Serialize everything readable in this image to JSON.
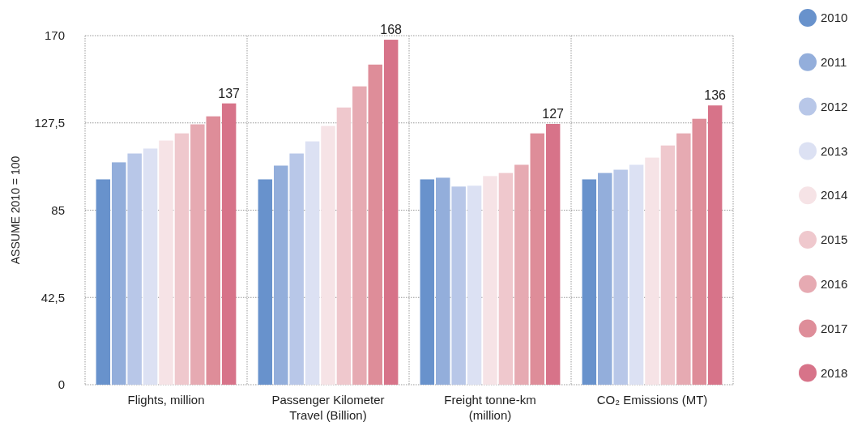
{
  "chart_data": {
    "type": "bar",
    "ylabel": "ASSUME 2010 = 100",
    "categories": [
      "Flights, million",
      "Passenger Kilometer Travel (Billion)",
      "Freight tonne-km (million)",
      "CO₂ Emissions (MT)"
    ],
    "series": [
      {
        "name": "2010",
        "color": "#6892cc",
        "values": [
          100,
          100,
          100,
          100
        ]
      },
      {
        "name": "2011",
        "color": "#93aedb",
        "values": [
          108.3,
          106.7,
          100.8,
          103.1
        ]
      },
      {
        "name": "2012",
        "color": "#b8c7e8",
        "values": [
          112.6,
          112.6,
          96.5,
          104.7
        ]
      },
      {
        "name": "2013",
        "color": "#dce1f3",
        "values": [
          115,
          118.5,
          96.9,
          107.1
        ]
      },
      {
        "name": "2014",
        "color": "#f6e3e6",
        "values": [
          118.9,
          126,
          101.6,
          110.6
        ]
      },
      {
        "name": "2015",
        "color": "#efc8cd",
        "values": [
          122.4,
          135,
          103.1,
          116.5
        ]
      },
      {
        "name": "2016",
        "color": "#e6aab2",
        "values": [
          126.8,
          145.3,
          107.1,
          122.4
        ]
      },
      {
        "name": "2017",
        "color": "#de8d99",
        "values": [
          130.7,
          155.9,
          122.4,
          129.5
        ]
      },
      {
        "name": "2018",
        "color": "#d77389",
        "values": [
          137,
          168,
          127,
          136
        ],
        "value_labels": [
          "137",
          "168",
          "127",
          "136"
        ]
      }
    ],
    "ylim": [
      0,
      170
    ],
    "yticks": [
      0,
      {
        "value": 42.5,
        "label": "42,5"
      },
      85,
      {
        "value": 127.5,
        "label": "127,5"
      },
      170
    ],
    "grid": true,
    "legend": "right"
  }
}
